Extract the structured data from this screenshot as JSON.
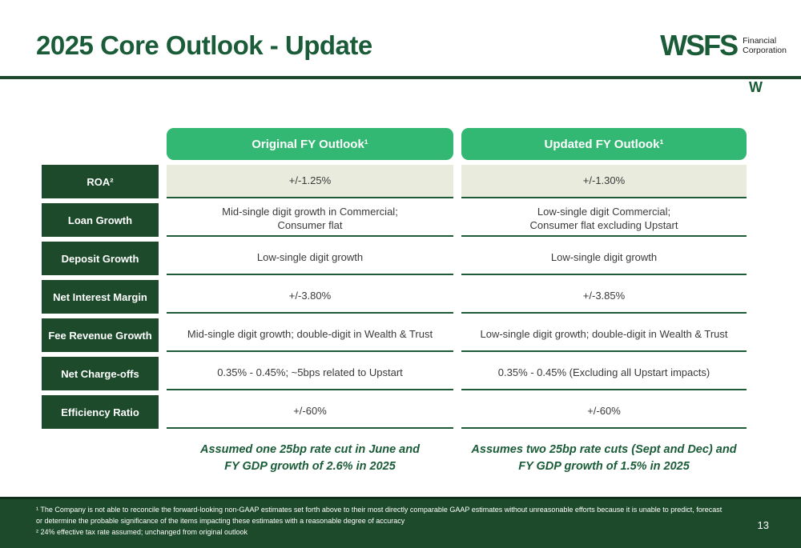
{
  "header": {
    "title": "2025 Core Outlook - Update"
  },
  "logo": {
    "wordmark": "WSFS",
    "sub_line1": "Financial",
    "sub_line2": "Corporation",
    "w_mark": "W"
  },
  "colors": {
    "brand_dark_green": "#1d4a2b",
    "title_green": "#1a5c38",
    "pill_green": "#33b873",
    "highlight_row_bg": "#e9ebdd"
  },
  "table": {
    "col_headers": [
      "Original FY Outlook¹",
      "Updated FY Outlook¹"
    ],
    "rows": [
      {
        "label": "ROA²",
        "original": "+/-1.25%",
        "updated": "+/-1.30%"
      },
      {
        "label": "Loan Growth",
        "original": "Mid-single digit growth in Commercial;\nConsumer flat",
        "updated": "Low-single digit Commercial;\nConsumer flat excluding Upstart"
      },
      {
        "label": "Deposit Growth",
        "original": "Low-single digit growth",
        "updated": "Low-single digit growth"
      },
      {
        "label": "Net Interest Margin",
        "original": "+/-3.80%",
        "updated": "+/-3.85%"
      },
      {
        "label": "Fee Revenue Growth",
        "original": "Mid-single digit growth; double-digit in Wealth & Trust",
        "updated": "Low-single digit growth; double-digit in Wealth & Trust"
      },
      {
        "label": "Net Charge-offs",
        "original": "0.35% - 0.45%; ~5bps related to Upstart",
        "updated": "0.35% - 0.45% (Excluding all Upstart impacts)"
      },
      {
        "label": "Efficiency Ratio",
        "original": "+/-60%",
        "updated": "+/-60%"
      }
    ],
    "assumptions": {
      "original": "Assumed one 25bp rate cut in June and\nFY GDP growth of 2.6% in 2025",
      "updated": "Assumes two 25bp rate cuts (Sept and Dec) and\nFY GDP growth of 1.5% in 2025"
    }
  },
  "footer": {
    "footnote1": "¹ The Company is not able to reconcile the forward-looking non-GAAP estimates set forth above to their most directly comparable GAAP estimates without unreasonable efforts because it is unable to predict, forecast or determine the probable significance of the items impacting these estimates with a reasonable degree of accuracy",
    "footnote2": "² 24% effective tax rate assumed; unchanged from original outlook",
    "page_number": "13"
  }
}
